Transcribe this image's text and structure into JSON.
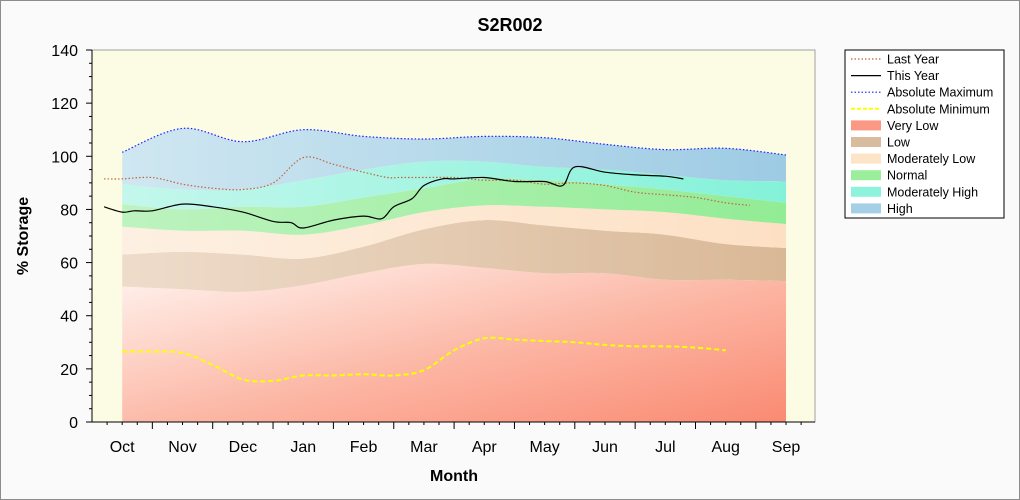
{
  "chart_data": {
    "type": "area",
    "title": "S2R002",
    "xlabel": "Month",
    "ylabel": "% Storage",
    "ylim": [
      0,
      140
    ],
    "yticks": [
      0,
      20,
      40,
      60,
      80,
      100,
      120,
      140
    ],
    "categories": [
      "Oct",
      "Nov",
      "Dec",
      "Jan",
      "Feb",
      "Mar",
      "Apr",
      "May",
      "Jun",
      "Jul",
      "Aug",
      "Sep"
    ],
    "legend_position": "right",
    "grid": false,
    "band_bounds": {
      "x": [
        "Oct",
        "Nov",
        "Dec",
        "Jan",
        "Feb",
        "Mar",
        "Apr",
        "May",
        "Jun",
        "Jul",
        "Aug",
        "Sep"
      ],
      "very_low_top": [
        51,
        50,
        49,
        51.5,
        56,
        59.5,
        58,
        56,
        56,
        53.5,
        53.5,
        53
      ],
      "low_top": [
        63,
        64,
        63,
        61.5,
        66,
        72.5,
        76,
        74,
        72,
        70.5,
        67,
        65.5
      ],
      "moderately_low_top": [
        73.5,
        72,
        72,
        70.5,
        74,
        79,
        81.5,
        81,
        80,
        79,
        76.5,
        74.5
      ],
      "normal_top": [
        82,
        80,
        81,
        81,
        84.5,
        88,
        91.5,
        91,
        89.5,
        87.5,
        85,
        82.5
      ],
      "moderately_high_top": [
        89.5,
        87.5,
        87.5,
        91,
        95,
        98,
        98,
        96,
        95,
        93,
        91,
        90.5
      ],
      "high_top": [
        101.5,
        110.5,
        105.5,
        110,
        107.5,
        106.5,
        107.5,
        107,
        104.5,
        102.5,
        103,
        100.5
      ]
    },
    "series": [
      {
        "name": "Last Year",
        "style": "dotted",
        "color": "#c0643c",
        "x": [
          0.7,
          1.0,
          1.5,
          2.0,
          2.5,
          3.0,
          3.5,
          4.0,
          4.5,
          5.0,
          5.4,
          5.6,
          6.0,
          6.5,
          7.0,
          7.5,
          8.0,
          8.5,
          9.0,
          9.5,
          10.0,
          10.5,
          11.0,
          11.4
        ],
        "y": [
          91.5,
          91.5,
          92,
          89.5,
          88,
          87.5,
          90,
          99.5,
          97,
          94,
          92,
          92,
          92,
          92,
          91,
          91,
          89.5,
          90,
          89,
          86.5,
          85.5,
          84.5,
          82.5,
          81.5
        ]
      },
      {
        "name": "This Year",
        "style": "solid",
        "color": "#000000",
        "x": [
          0.7,
          1.0,
          1.2,
          1.5,
          2.0,
          2.5,
          3.0,
          3.5,
          3.8,
          4.0,
          4.5,
          5.0,
          5.3,
          5.5,
          5.8,
          6.0,
          6.3,
          6.5,
          7.0,
          7.5,
          8.0,
          8.3,
          8.5,
          9.0,
          9.5,
          10.0,
          10.3
        ],
        "y": [
          81,
          79,
          79.5,
          79.5,
          82,
          81,
          79,
          75.5,
          75,
          73,
          76,
          77.5,
          76.5,
          81,
          84,
          89,
          91.5,
          91.5,
          92,
          90.5,
          90.5,
          89,
          96,
          94,
          93,
          92.5,
          91.5
        ]
      },
      {
        "name": "Absolute Maximum",
        "style": "dotted",
        "color": "#1e1eff"
      },
      {
        "name": "Absolute Minimum",
        "style": "dashed",
        "color": "#ffff00",
        "x": [
          1.0,
          1.5,
          2.0,
          2.5,
          3.0,
          3.5,
          4.0,
          4.5,
          5.0,
          5.5,
          6.0,
          6.5,
          7.0,
          7.5,
          8.0,
          8.5,
          9.0,
          9.5,
          10.0,
          10.5,
          11.0
        ],
        "y": [
          26.5,
          26.5,
          26,
          21.5,
          16,
          15.5,
          17.5,
          17.5,
          18,
          17.5,
          19.5,
          27,
          31.5,
          31,
          30.5,
          30,
          29,
          28.5,
          28.5,
          28,
          27
        ]
      }
    ],
    "legend": [
      {
        "label": "Last Year",
        "kind": "line",
        "style": "dotted",
        "color": "#c0643c"
      },
      {
        "label": "This Year",
        "kind": "line",
        "style": "solid",
        "color": "#000000"
      },
      {
        "label": "Absolute Maximum",
        "kind": "line",
        "style": "dotted",
        "color": "#1e1eff"
      },
      {
        "label": "Absolute Minimum",
        "kind": "line",
        "style": "dashed",
        "color": "#ffff00"
      },
      {
        "label": "Very Low",
        "kind": "box",
        "color": "#fa9884"
      },
      {
        "label": "Low",
        "kind": "box",
        "color": "#d9bc9d"
      },
      {
        "label": "Moderately Low",
        "kind": "box",
        "color": "#fde3c8"
      },
      {
        "label": "Normal",
        "kind": "box",
        "color": "#9aee9c"
      },
      {
        "label": "Moderately High",
        "kind": "box",
        "color": "#8ef3dc"
      },
      {
        "label": "High",
        "kind": "box",
        "color": "#a5cfe6"
      }
    ]
  },
  "colors": {
    "plot_background": "#fcfce4",
    "very_low": "#fa9884",
    "low": "#d9bc9d",
    "moderately_low": "#fde3c8",
    "normal": "#9aee9c",
    "moderately_high": "#8ef3dc",
    "high": "#a5cfe6"
  }
}
